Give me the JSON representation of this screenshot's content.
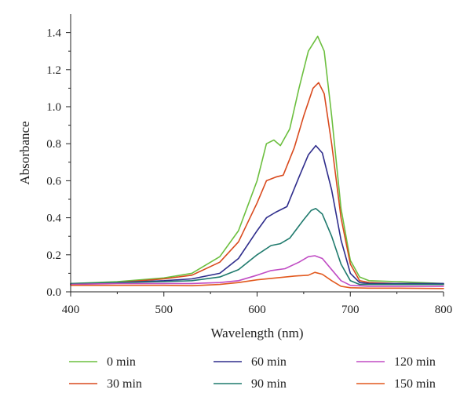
{
  "chart_data": {
    "type": "line",
    "xlabel": "Wavelength (nm)",
    "ylabel": "Absorbance",
    "xlim": [
      400,
      800
    ],
    "ylim": [
      0,
      1.5
    ],
    "xticks": [
      400,
      500,
      600,
      700,
      800
    ],
    "xtick_labels": [
      "400",
      "500",
      "600",
      "700",
      "800"
    ],
    "yticks": [
      0,
      0.2,
      0.4,
      0.6,
      0.8,
      1.0,
      1.2,
      1.4
    ],
    "ytick_labels": [
      "0.0",
      "0.2",
      "0.4",
      "0.6",
      "0.8",
      "1.0",
      "1.2",
      "1.4"
    ],
    "grid": false,
    "legend_position": "bottom",
    "series": [
      {
        "name": "0 min",
        "color": "#6cbf3f",
        "points": [
          [
            400,
            0.045
          ],
          [
            450,
            0.055
          ],
          [
            500,
            0.075
          ],
          [
            530,
            0.1
          ],
          [
            560,
            0.19
          ],
          [
            580,
            0.33
          ],
          [
            600,
            0.6
          ],
          [
            610,
            0.8
          ],
          [
            618,
            0.82
          ],
          [
            625,
            0.79
          ],
          [
            635,
            0.88
          ],
          [
            645,
            1.1
          ],
          [
            655,
            1.3
          ],
          [
            665,
            1.38
          ],
          [
            672,
            1.3
          ],
          [
            680,
            0.95
          ],
          [
            690,
            0.45
          ],
          [
            700,
            0.17
          ],
          [
            710,
            0.08
          ],
          [
            720,
            0.06
          ],
          [
            750,
            0.055
          ],
          [
            800,
            0.045
          ]
        ]
      },
      {
        "name": "30 min",
        "color": "#d94a1e",
        "points": [
          [
            400,
            0.04
          ],
          [
            450,
            0.05
          ],
          [
            500,
            0.07
          ],
          [
            530,
            0.09
          ],
          [
            560,
            0.16
          ],
          [
            580,
            0.27
          ],
          [
            600,
            0.48
          ],
          [
            610,
            0.6
          ],
          [
            620,
            0.62
          ],
          [
            628,
            0.63
          ],
          [
            640,
            0.78
          ],
          [
            650,
            0.95
          ],
          [
            660,
            1.1
          ],
          [
            666,
            1.13
          ],
          [
            672,
            1.07
          ],
          [
            680,
            0.8
          ],
          [
            690,
            0.4
          ],
          [
            700,
            0.15
          ],
          [
            710,
            0.06
          ],
          [
            720,
            0.05
          ],
          [
            750,
            0.045
          ],
          [
            800,
            0.04
          ]
        ]
      },
      {
        "name": "60 min",
        "color": "#2f2d8c",
        "points": [
          [
            400,
            0.04
          ],
          [
            450,
            0.05
          ],
          [
            500,
            0.06
          ],
          [
            530,
            0.07
          ],
          [
            560,
            0.1
          ],
          [
            580,
            0.18
          ],
          [
            600,
            0.33
          ],
          [
            610,
            0.4
          ],
          [
            620,
            0.43
          ],
          [
            632,
            0.46
          ],
          [
            645,
            0.62
          ],
          [
            655,
            0.74
          ],
          [
            663,
            0.79
          ],
          [
            670,
            0.75
          ],
          [
            680,
            0.55
          ],
          [
            690,
            0.28
          ],
          [
            700,
            0.1
          ],
          [
            710,
            0.05
          ],
          [
            720,
            0.045
          ],
          [
            750,
            0.045
          ],
          [
            800,
            0.045
          ]
        ]
      },
      {
        "name": "90 min",
        "color": "#1f7a6d",
        "points": [
          [
            400,
            0.045
          ],
          [
            450,
            0.05
          ],
          [
            500,
            0.055
          ],
          [
            530,
            0.06
          ],
          [
            560,
            0.08
          ],
          [
            580,
            0.12
          ],
          [
            600,
            0.2
          ],
          [
            615,
            0.25
          ],
          [
            625,
            0.26
          ],
          [
            635,
            0.29
          ],
          [
            650,
            0.39
          ],
          [
            658,
            0.44
          ],
          [
            663,
            0.45
          ],
          [
            670,
            0.42
          ],
          [
            680,
            0.3
          ],
          [
            690,
            0.15
          ],
          [
            700,
            0.06
          ],
          [
            710,
            0.04
          ],
          [
            750,
            0.04
          ],
          [
            800,
            0.04
          ]
        ]
      },
      {
        "name": "120 min",
        "color": "#c04cc4",
        "points": [
          [
            400,
            0.04
          ],
          [
            450,
            0.045
          ],
          [
            500,
            0.045
          ],
          [
            530,
            0.045
          ],
          [
            560,
            0.05
          ],
          [
            580,
            0.06
          ],
          [
            600,
            0.09
          ],
          [
            615,
            0.115
          ],
          [
            630,
            0.125
          ],
          [
            645,
            0.16
          ],
          [
            655,
            0.19
          ],
          [
            662,
            0.195
          ],
          [
            670,
            0.18
          ],
          [
            680,
            0.12
          ],
          [
            690,
            0.06
          ],
          [
            700,
            0.035
          ],
          [
            720,
            0.03
          ],
          [
            750,
            0.03
          ],
          [
            800,
            0.03
          ]
        ]
      },
      {
        "name": "150 min",
        "color": "#e2591e",
        "points": [
          [
            400,
            0.035
          ],
          [
            450,
            0.035
          ],
          [
            500,
            0.035
          ],
          [
            530,
            0.033
          ],
          [
            560,
            0.04
          ],
          [
            580,
            0.05
          ],
          [
            600,
            0.065
          ],
          [
            620,
            0.075
          ],
          [
            640,
            0.085
          ],
          [
            655,
            0.09
          ],
          [
            662,
            0.105
          ],
          [
            670,
            0.095
          ],
          [
            680,
            0.06
          ],
          [
            690,
            0.03
          ],
          [
            700,
            0.022
          ],
          [
            720,
            0.02
          ],
          [
            750,
            0.02
          ],
          [
            800,
            0.018
          ]
        ]
      }
    ]
  }
}
